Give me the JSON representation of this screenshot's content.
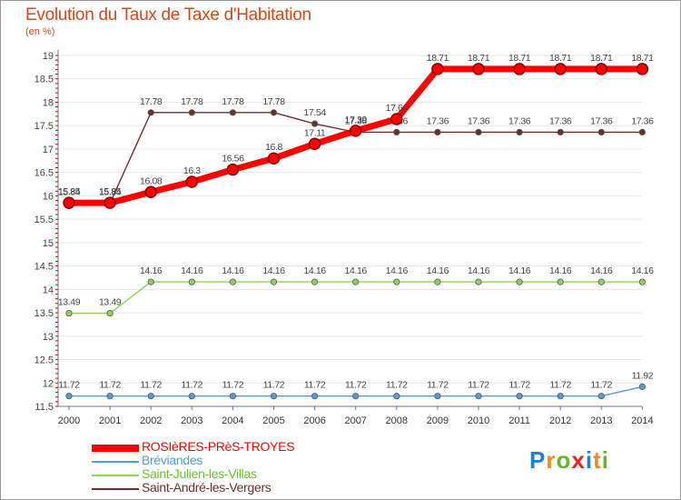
{
  "header": {
    "title": "Evolution du Taux de Taxe d'Habitation",
    "subtitle": "(en %)"
  },
  "brand": {
    "letters": [
      "P",
      "r",
      "o",
      "x",
      "i",
      "t",
      "i"
    ],
    "colors": [
      "#1f7fd6",
      "#f08a1c",
      "#6ab42d",
      "#e3262a",
      "#1f7fd6",
      "#f08a1c",
      "#6ab42d"
    ]
  },
  "chart_data": {
    "type": "line",
    "title": "Evolution du Taux de Taxe d'Habitation",
    "ylabel": "(en %)",
    "xlabel": "",
    "ylim": [
      11.5,
      19
    ],
    "yticks": [
      "11.5",
      "12",
      "12.5",
      "13",
      "13.5",
      "14",
      "14.5",
      "15",
      "15.5",
      "16",
      "16.5",
      "17",
      "17.5",
      "18",
      "18.5",
      "19"
    ],
    "x": [
      "2000",
      "2001",
      "2002",
      "2003",
      "2004",
      "2005",
      "2006",
      "2007",
      "2008",
      "2009",
      "2010",
      "2011",
      "2012",
      "2013",
      "2014"
    ],
    "legend_position": "bottom-left",
    "series": [
      {
        "name": "Saint-André-les-Vergers",
        "color": "#6b2f2f",
        "values": [
          15.84,
          15.84,
          17.78,
          17.78,
          17.78,
          17.78,
          17.54,
          17.36,
          17.36,
          17.36,
          17.36,
          17.36,
          17.36,
          17.36,
          17.36
        ]
      },
      {
        "name": "Saint-Julien-les-Villas",
        "color": "#8fd15a",
        "values": [
          13.49,
          13.49,
          14.16,
          14.16,
          14.16,
          14.16,
          14.16,
          14.16,
          14.16,
          14.16,
          14.16,
          14.16,
          14.16,
          14.16,
          14.16
        ]
      },
      {
        "name": "Bréviandes",
        "color": "#5a9bd5",
        "values": [
          11.72,
          11.72,
          11.72,
          11.72,
          11.72,
          11.72,
          11.72,
          11.72,
          11.72,
          11.72,
          11.72,
          11.72,
          11.72,
          11.72,
          11.92
        ]
      },
      {
        "name": "ROSIèRES-PRèS-TROYES",
        "color": "#ff0000",
        "values": [
          15.85,
          15.85,
          16.08,
          16.3,
          16.56,
          16.8,
          17.11,
          17.39,
          17.64,
          18.71,
          18.71,
          18.71,
          18.71,
          18.71,
          18.71
        ]
      }
    ],
    "legend_order": [
      "ROSIèRES-PRèS-TROYES",
      "Bréviandes",
      "Saint-Julien-les-Villas",
      "Saint-André-les-Vergers"
    ]
  }
}
